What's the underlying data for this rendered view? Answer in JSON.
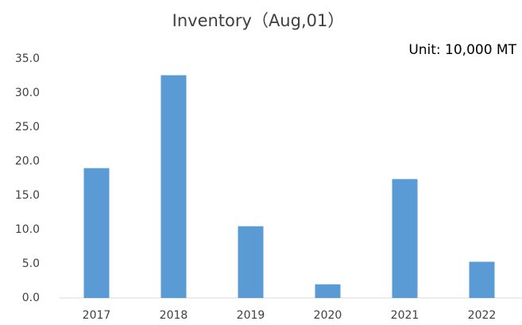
{
  "chart_data": {
    "type": "bar",
    "title": "Inventory（Aug,01）",
    "annotation": "Unit: 10,000 MT",
    "categories": [
      "2017",
      "2018",
      "2019",
      "2020",
      "2021",
      "2022"
    ],
    "values": [
      19.0,
      32.6,
      10.5,
      2.0,
      17.4,
      5.3
    ],
    "color": "#5b9bd5",
    "ylim": [
      0,
      35
    ],
    "yticks": [
      {
        "value": 0,
        "label": "0.0"
      },
      {
        "value": 5,
        "label": "5.0"
      },
      {
        "value": 10,
        "label": "10.0"
      },
      {
        "value": 15,
        "label": "15.0"
      },
      {
        "value": 20,
        "label": "20.0"
      },
      {
        "value": 25,
        "label": "25.0"
      },
      {
        "value": 30,
        "label": "30.0"
      },
      {
        "value": 35,
        "label": "35.0"
      }
    ],
    "grid": false
  }
}
